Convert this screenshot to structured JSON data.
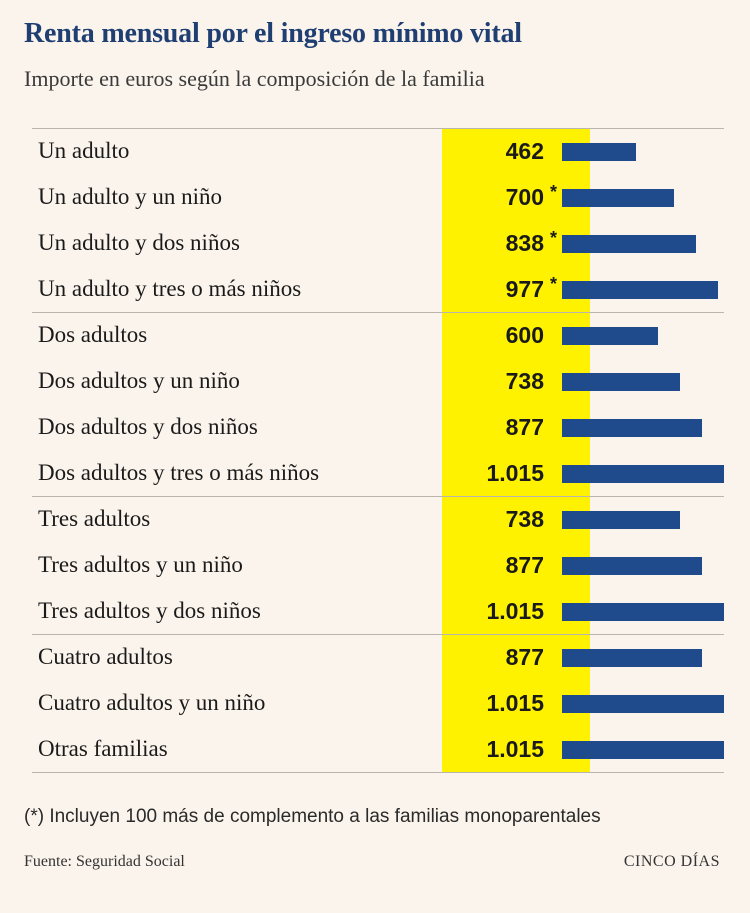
{
  "title": "Renta mensual por el ingreso mínimo vital",
  "subtitle": "Importe en euros según la composición de la familia",
  "note": "(*) Incluyen 100 más de complemento a las familias monoparentales",
  "source": "Fuente: Seguridad Social",
  "brand": "CINCO DÍAS",
  "colors": {
    "highlight": "#fff200",
    "bar": "#1f4a8c",
    "title": "#1f3f73",
    "background": "#fbf4ec"
  },
  "chart_data": {
    "type": "bar",
    "orientation": "horizontal",
    "title": "Renta mensual por el ingreso mínimo vital",
    "subtitle": "Importe en euros según la composición de la familia",
    "xlim": [
      0,
      1015
    ],
    "categories": [
      "Un adulto",
      "Un adulto y un niño",
      "Un adulto y dos niños",
      "Un adulto y tres o más niños",
      "Dos adultos",
      "Dos adultos y un niño",
      "Dos adultos y dos niños",
      "Dos adultos y tres o más niños",
      "Tres adultos",
      "Tres adultos y un niño",
      "Tres adultos y dos niños",
      "Cuatro adultos",
      "Cuatro adultos y un niño",
      "Otras familias"
    ],
    "values": [
      462,
      700,
      838,
      977,
      600,
      738,
      877,
      1015,
      738,
      877,
      1015,
      877,
      1015,
      1015
    ],
    "value_labels": [
      "462",
      "700",
      "838",
      "977",
      "600",
      "738",
      "877",
      "1.015",
      "738",
      "877",
      "1.015",
      "877",
      "1.015",
      "1.015"
    ],
    "asterisk": [
      false,
      true,
      true,
      true,
      false,
      false,
      false,
      false,
      false,
      false,
      false,
      false,
      false,
      false
    ],
    "asterisk_symbol": "*",
    "groups": [
      {
        "rows": [
          0,
          1,
          2,
          3
        ]
      },
      {
        "rows": [
          4,
          5,
          6,
          7
        ]
      },
      {
        "rows": [
          8,
          9,
          10
        ]
      },
      {
        "rows": [
          11,
          12,
          13
        ]
      }
    ]
  }
}
